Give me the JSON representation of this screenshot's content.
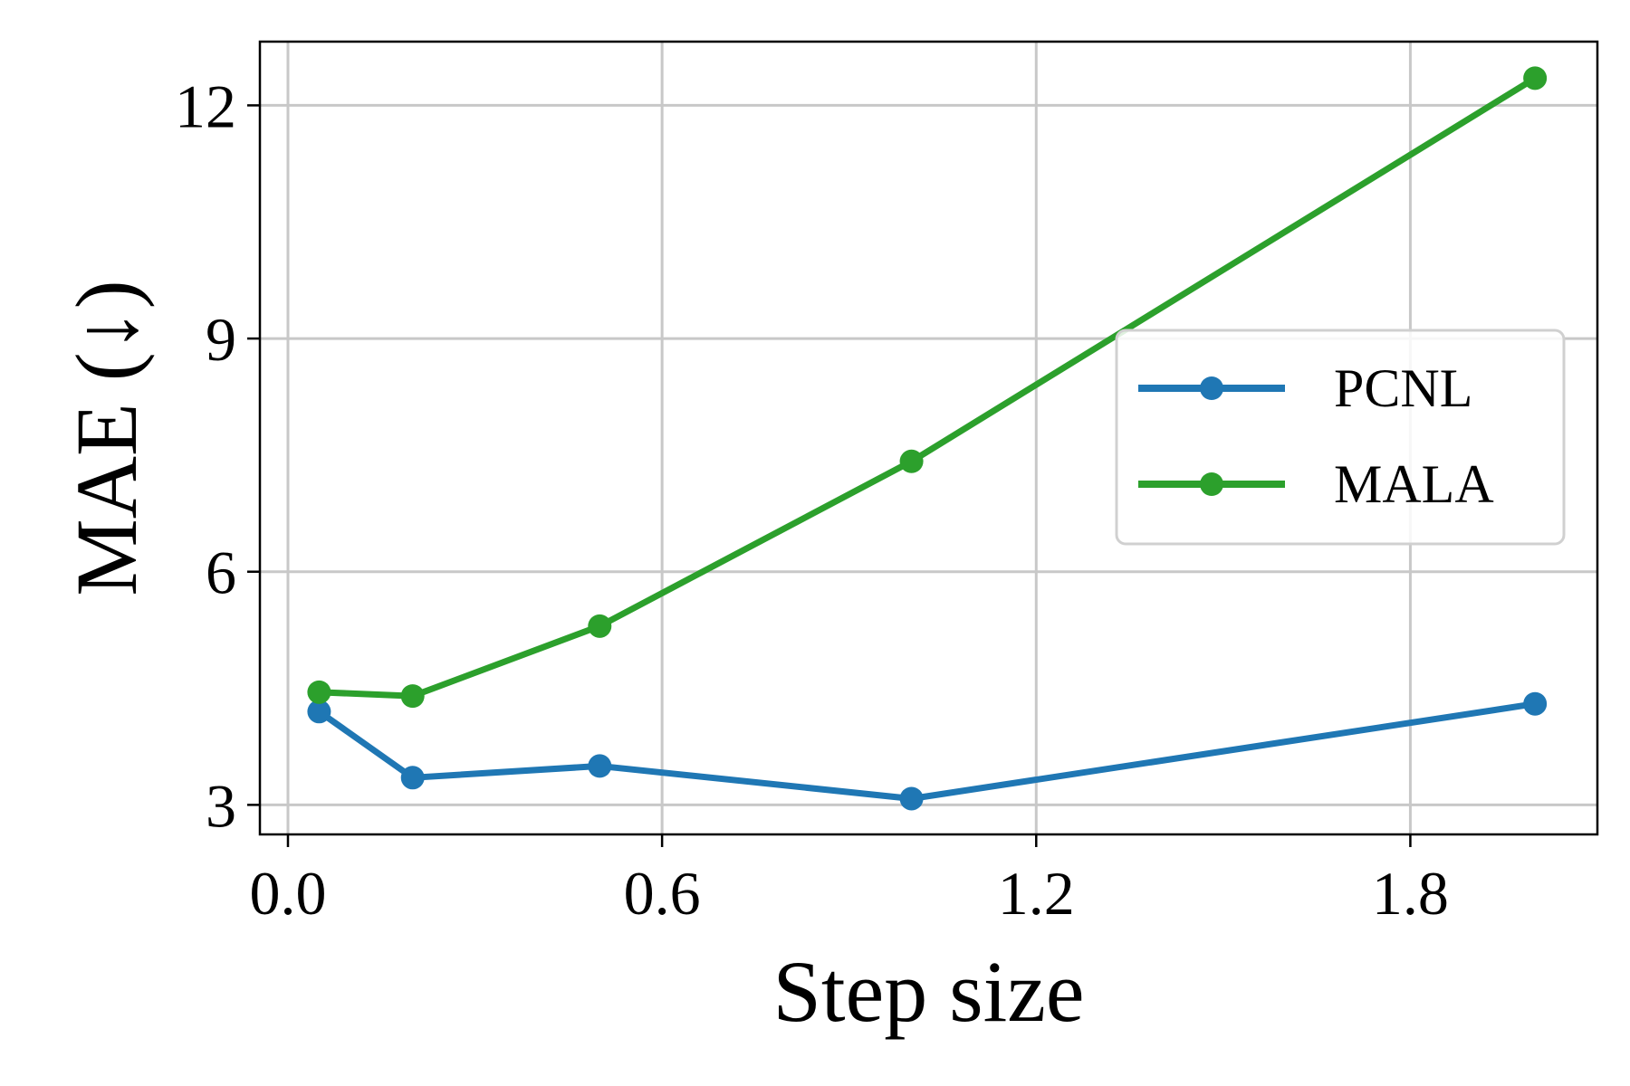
{
  "chart_data": {
    "type": "line",
    "xlabel": "Step size",
    "ylabel": "MAE (↓)",
    "xlim": [
      -0.045,
      2.1
    ],
    "ylim": [
      2.62,
      12.82
    ],
    "xticks": [
      0.0,
      0.6,
      1.2,
      1.8
    ],
    "xtick_labels": [
      "0.0",
      "0.6",
      "1.2",
      "1.8"
    ],
    "yticks": [
      3,
      6,
      9,
      12
    ],
    "ytick_labels": [
      "3",
      "6",
      "9",
      "12"
    ],
    "grid": true,
    "legend_position": "center-right",
    "series": [
      {
        "name": "PCNL",
        "color": "#1f77b4",
        "x": [
          0.05,
          0.2,
          0.5,
          1.0,
          2.0
        ],
        "y": [
          4.2,
          3.35,
          3.5,
          3.08,
          4.3
        ]
      },
      {
        "name": "MALA",
        "color": "#2ca02c",
        "x": [
          0.05,
          0.2,
          0.5,
          1.0,
          2.0
        ],
        "y": [
          4.45,
          4.4,
          5.3,
          7.42,
          12.35
        ]
      }
    ]
  }
}
